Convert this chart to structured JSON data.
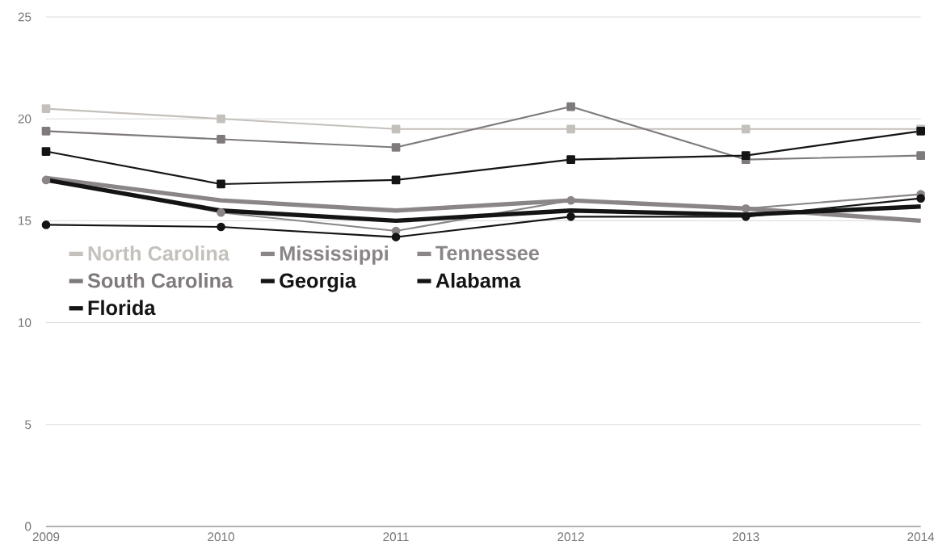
{
  "chart_data": {
    "type": "line",
    "x": [
      2009,
      2010,
      2011,
      2012,
      2013,
      2014
    ],
    "xlim": [
      2009,
      2014
    ],
    "xticks": [
      2009,
      2010,
      2011,
      2012,
      2013,
      2014
    ],
    "ylim": [
      0,
      25
    ],
    "yticks": [
      0,
      5,
      10,
      15,
      20,
      25
    ],
    "grid": "y",
    "legend": "left",
    "series": [
      {
        "name": "North Carolina",
        "color": "#c4c0bc",
        "marker": "square",
        "values": [
          20.5,
          20.0,
          19.5,
          19.5,
          19.5,
          19.5
        ]
      },
      {
        "name": "Mississippi",
        "color": "#8a8586",
        "marker": "none",
        "values": [
          17.1,
          16.0,
          15.5,
          16.0,
          15.6,
          15.0
        ]
      },
      {
        "name": "Tennessee",
        "color": "#8a8586",
        "marker": "circle",
        "values": [
          17.0,
          15.4,
          14.5,
          16.0,
          15.6,
          16.3
        ]
      },
      {
        "name": "South Carolina",
        "color": "#7f7a7b",
        "marker": "square",
        "values": [
          19.4,
          19.0,
          18.6,
          20.6,
          18.0,
          18.2
        ]
      },
      {
        "name": "Georgia",
        "color": "#141414",
        "marker": "none",
        "values": [
          17.0,
          15.5,
          15.0,
          15.5,
          15.3,
          15.7
        ]
      },
      {
        "name": "Alabama",
        "color": "#141414",
        "marker": "circle",
        "values": [
          14.8,
          14.7,
          14.2,
          15.2,
          15.2,
          16.1
        ]
      },
      {
        "name": "Florida",
        "color": "#141414",
        "marker": "square",
        "values": [
          18.4,
          16.8,
          17.0,
          18.0,
          18.2,
          19.4
        ]
      }
    ]
  }
}
